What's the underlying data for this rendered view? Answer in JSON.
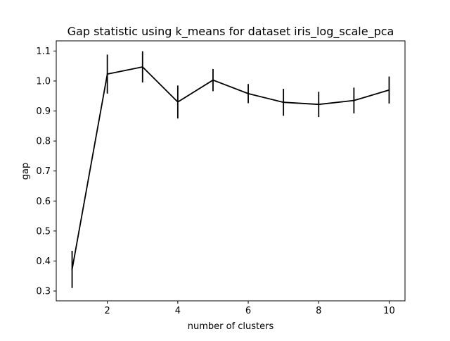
{
  "chart_data": {
    "type": "line",
    "title": "Gap statistic using k_means for dataset iris_log_scale_pca",
    "xlabel": "number of clusters",
    "ylabel": "gap",
    "x": [
      1,
      2,
      3,
      4,
      5,
      6,
      7,
      8,
      9,
      10
    ],
    "series": [
      {
        "values": [
          0.372,
          1.023,
          1.047,
          0.93,
          1.003,
          0.958,
          0.929,
          0.922,
          0.935,
          0.97
        ],
        "error": [
          0.062,
          0.065,
          0.052,
          0.055,
          0.037,
          0.032,
          0.045,
          0.042,
          0.043,
          0.045
        ],
        "color": "#000000"
      }
    ],
    "xlim": [
      0.55,
      10.45
    ],
    "ylim": [
      0.2672,
      1.1338
    ],
    "xticks": [
      2,
      4,
      6,
      8,
      10
    ],
    "yticks": [
      0.3,
      0.4,
      0.5,
      0.6,
      0.7,
      0.8,
      0.9,
      1.0,
      1.1
    ],
    "yticklabels": [
      "0.3",
      "0.4",
      "0.5",
      "0.6",
      "0.7",
      "0.8",
      "0.9",
      "1.0",
      "1.1"
    ],
    "grid": false,
    "legend": "none"
  }
}
